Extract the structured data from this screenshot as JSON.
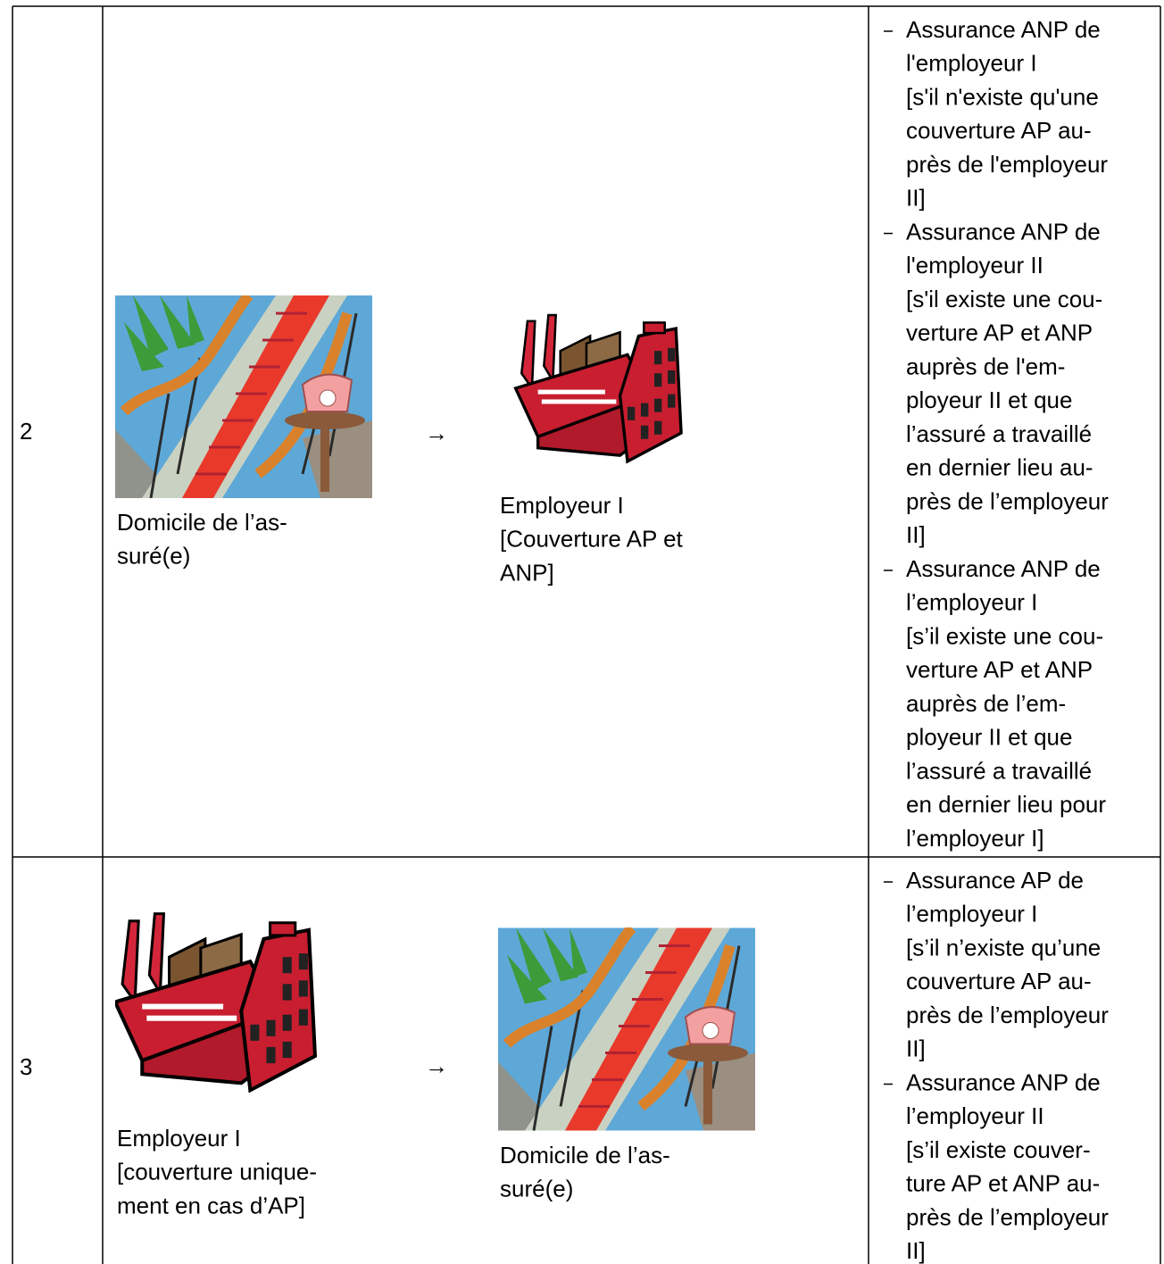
{
  "table": {
    "rows": [
      {
        "number": "2",
        "from": {
          "lines": [
            "Domicile de l’as-",
            "suré(e)"
          ]
        },
        "arrow": "→",
        "to": {
          "lines": [
            "Employeur I",
            "[Couverture AP et",
            "ANP]"
          ]
        },
        "items": [
          {
            "lines": [
              "Assurance ANP de",
              "l'employeur I",
              "[s'il n'existe qu'une",
              "couverture AP au-",
              "près de l'employeur",
              "II]"
            ]
          },
          {
            "lines": [
              "Assurance ANP de",
              "l'employeur II",
              "[s'il existe une cou-",
              "verture AP et ANP",
              "auprès de l'em-",
              "ployeur II et que",
              "l’assuré a travaillé",
              "en dernier lieu au-",
              "près de l’employeur",
              "II]"
            ]
          },
          {
            "lines": [
              "Assurance ANP de",
              "l’employeur I",
              "[s’il existe une cou-",
              "verture AP et ANP",
              "auprès de l’em-",
              "ployeur II et que",
              "l’assuré a travaillé",
              "en dernier lieu pour",
              "l’employeur I]"
            ]
          }
        ]
      },
      {
        "number": "3",
        "from": {
          "lines": [
            "Employeur I",
            "[couverture unique-",
            "ment en cas d’AP]"
          ]
        },
        "arrow": "→",
        "to": {
          "lines": [
            "Domicile de l’as-",
            "suré(e)"
          ]
        },
        "items": [
          {
            "lines": [
              "Assurance AP de",
              "l’employeur I",
              "[s’il n’existe qu’une",
              "couverture AP au-",
              "près de l’employeur",
              "II]"
            ]
          },
          {
            "lines": [
              "Assurance ANP de",
              "l’employeur II",
              "[s’il existe couver-",
              "ture AP et ANP au-",
              "près de l’employeur",
              "II]"
            ]
          }
        ]
      }
    ]
  }
}
